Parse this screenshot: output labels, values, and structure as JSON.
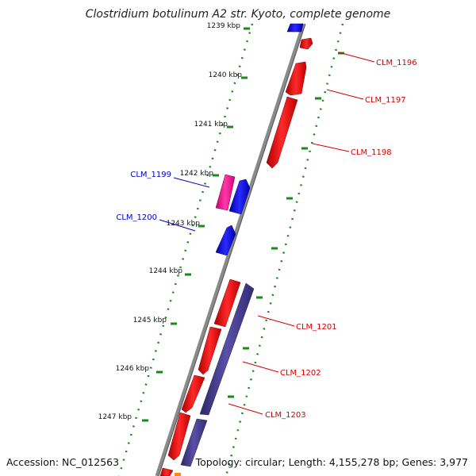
{
  "title": "Clostridium botulinum A2 str. Kyoto, complete genome",
  "footer": {
    "accession": "Accession: NC_012563",
    "summary": "Topology: circular; Length: 4,155,278 bp; Genes: 3,977"
  },
  "scale_ticks": [
    "1239 kbp",
    "1240 kbp",
    "1241 kbp",
    "1242 kbp",
    "1243 kbp",
    "1244 kbp",
    "1245 kbp",
    "1246 kbp",
    "1247 kbp"
  ],
  "gene_labels": {
    "forward": [
      "CLM_1196",
      "CLM_1197",
      "CLM_1198"
    ],
    "reverse": [
      "CLM_1199",
      "CLM_1200"
    ],
    "lower": [
      "CLM_1201",
      "CLM_1202",
      "CLM_1203"
    ]
  },
  "colors": {
    "backbone": "#8a8a8a",
    "cds": "#ff0000",
    "cds_reverse": "#0000ff",
    "cds_pink": "#ff1493",
    "cds_purple": "#483d8b",
    "tick_marks": "#1a8a1a",
    "label_red": "#d40000",
    "label_blue": "#0000c8"
  }
}
